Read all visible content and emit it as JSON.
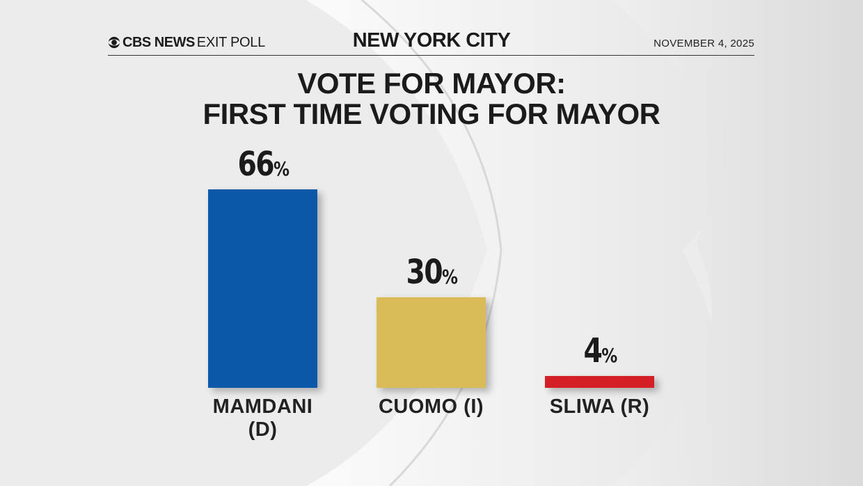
{
  "header": {
    "logo_brand": "CBS NEWS",
    "logo_product": "EXIT POLL",
    "city": "NEW YORK CITY",
    "date": "NOVEMBER 4, 2025"
  },
  "colors": {
    "mamdani": "#0b58a8",
    "cuomo": "#d9bb57",
    "sliwa": "#d51f26",
    "text": "#1b1b1b"
  },
  "chart_data": {
    "type": "bar",
    "title": "VOTE FOR MAYOR:",
    "subtitle": "FIRST TIME VOTING FOR MAYOR",
    "categories": [
      "MAMDANI (D)",
      "CUOMO (I)",
      "SLIWA (R)"
    ],
    "category_lines": [
      [
        "MAMDANI",
        "(D)"
      ],
      [
        "CUOMO (I)"
      ],
      [
        "SLIWA (R)"
      ]
    ],
    "values": [
      66,
      30,
      4
    ],
    "value_labels": [
      "66",
      "30",
      "4"
    ],
    "unit": "%",
    "ylim": [
      0,
      100
    ],
    "grid": false
  }
}
